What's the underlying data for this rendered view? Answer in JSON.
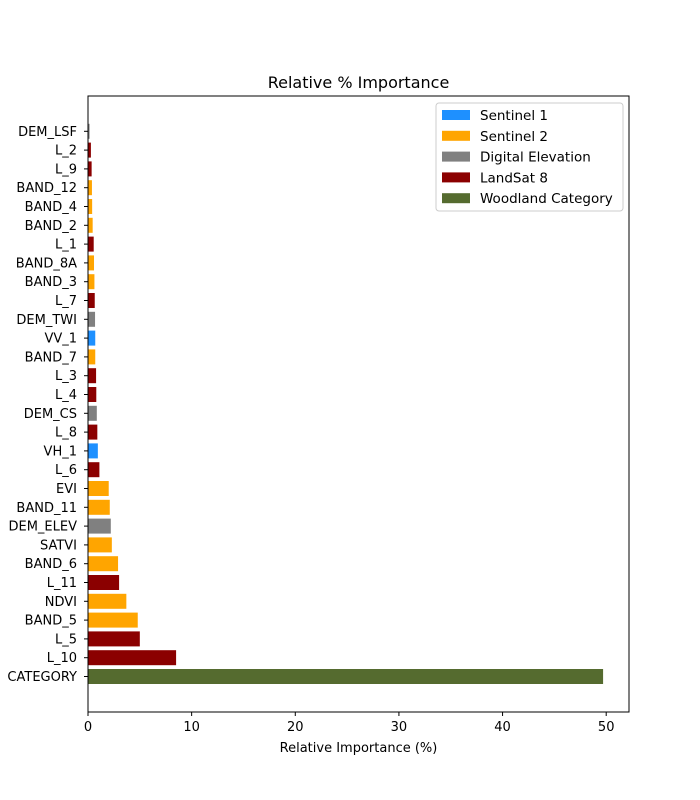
{
  "chart_data": {
    "type": "bar",
    "orientation": "horizontal",
    "title": "Relative % Importance",
    "xlabel": "Relative Importance (%)",
    "ylabel": "",
    "xlim": [
      0,
      52.2
    ],
    "xticks": [
      0,
      10,
      20,
      30,
      40,
      50
    ],
    "grid": false,
    "legend_position": "top-right",
    "legend": [
      {
        "name": "Sentinel 1",
        "color": "#1E90FF"
      },
      {
        "name": "Sentinel 2",
        "color": "#FFA500"
      },
      {
        "name": "Digital Elevation",
        "color": "#808080"
      },
      {
        "name": "LandSat 8",
        "color": "#8B0000"
      },
      {
        "name": "Woodland Category",
        "color": "#556B2F"
      }
    ],
    "bars": [
      {
        "label": "CATEGORY",
        "value": 49.7,
        "group": "Woodland Category"
      },
      {
        "label": "L_10",
        "value": 8.5,
        "group": "LandSat 8"
      },
      {
        "label": "L_5",
        "value": 5.0,
        "group": "LandSat 8"
      },
      {
        "label": "BAND_5",
        "value": 4.8,
        "group": "Sentinel 2"
      },
      {
        "label": "NDVI",
        "value": 3.7,
        "group": "Sentinel 2"
      },
      {
        "label": "L_11",
        "value": 3.0,
        "group": "LandSat 8"
      },
      {
        "label": "BAND_6",
        "value": 2.9,
        "group": "Sentinel 2"
      },
      {
        "label": "SATVI",
        "value": 2.3,
        "group": "Sentinel 2"
      },
      {
        "label": "DEM_ELEV",
        "value": 2.2,
        "group": "Digital Elevation"
      },
      {
        "label": "BAND_11",
        "value": 2.1,
        "group": "Sentinel 2"
      },
      {
        "label": "EVI",
        "value": 2.0,
        "group": "Sentinel 2"
      },
      {
        "label": "L_6",
        "value": 1.1,
        "group": "LandSat 8"
      },
      {
        "label": "VH_1",
        "value": 0.95,
        "group": "Sentinel 1"
      },
      {
        "label": "L_8",
        "value": 0.9,
        "group": "LandSat 8"
      },
      {
        "label": "DEM_CS",
        "value": 0.85,
        "group": "Digital Elevation"
      },
      {
        "label": "L_4",
        "value": 0.8,
        "group": "LandSat 8"
      },
      {
        "label": "L_3",
        "value": 0.78,
        "group": "LandSat 8"
      },
      {
        "label": "BAND_7",
        "value": 0.7,
        "group": "Sentinel 2"
      },
      {
        "label": "VV_1",
        "value": 0.7,
        "group": "Sentinel 1"
      },
      {
        "label": "DEM_TWI",
        "value": 0.68,
        "group": "Digital Elevation"
      },
      {
        "label": "L_7",
        "value": 0.65,
        "group": "LandSat 8"
      },
      {
        "label": "BAND_3",
        "value": 0.62,
        "group": "Sentinel 2"
      },
      {
        "label": "BAND_8A",
        "value": 0.58,
        "group": "Sentinel 2"
      },
      {
        "label": "L_1",
        "value": 0.55,
        "group": "LandSat 8"
      },
      {
        "label": "BAND_2",
        "value": 0.45,
        "group": "Sentinel 2"
      },
      {
        "label": "BAND_4",
        "value": 0.4,
        "group": "Sentinel 2"
      },
      {
        "label": "BAND_12",
        "value": 0.38,
        "group": "Sentinel 2"
      },
      {
        "label": "L_9",
        "value": 0.35,
        "group": "LandSat 8"
      },
      {
        "label": "L_2",
        "value": 0.28,
        "group": "LandSat 8"
      },
      {
        "label": "DEM_LSF",
        "value": 0.15,
        "group": "Digital Elevation"
      }
    ]
  }
}
